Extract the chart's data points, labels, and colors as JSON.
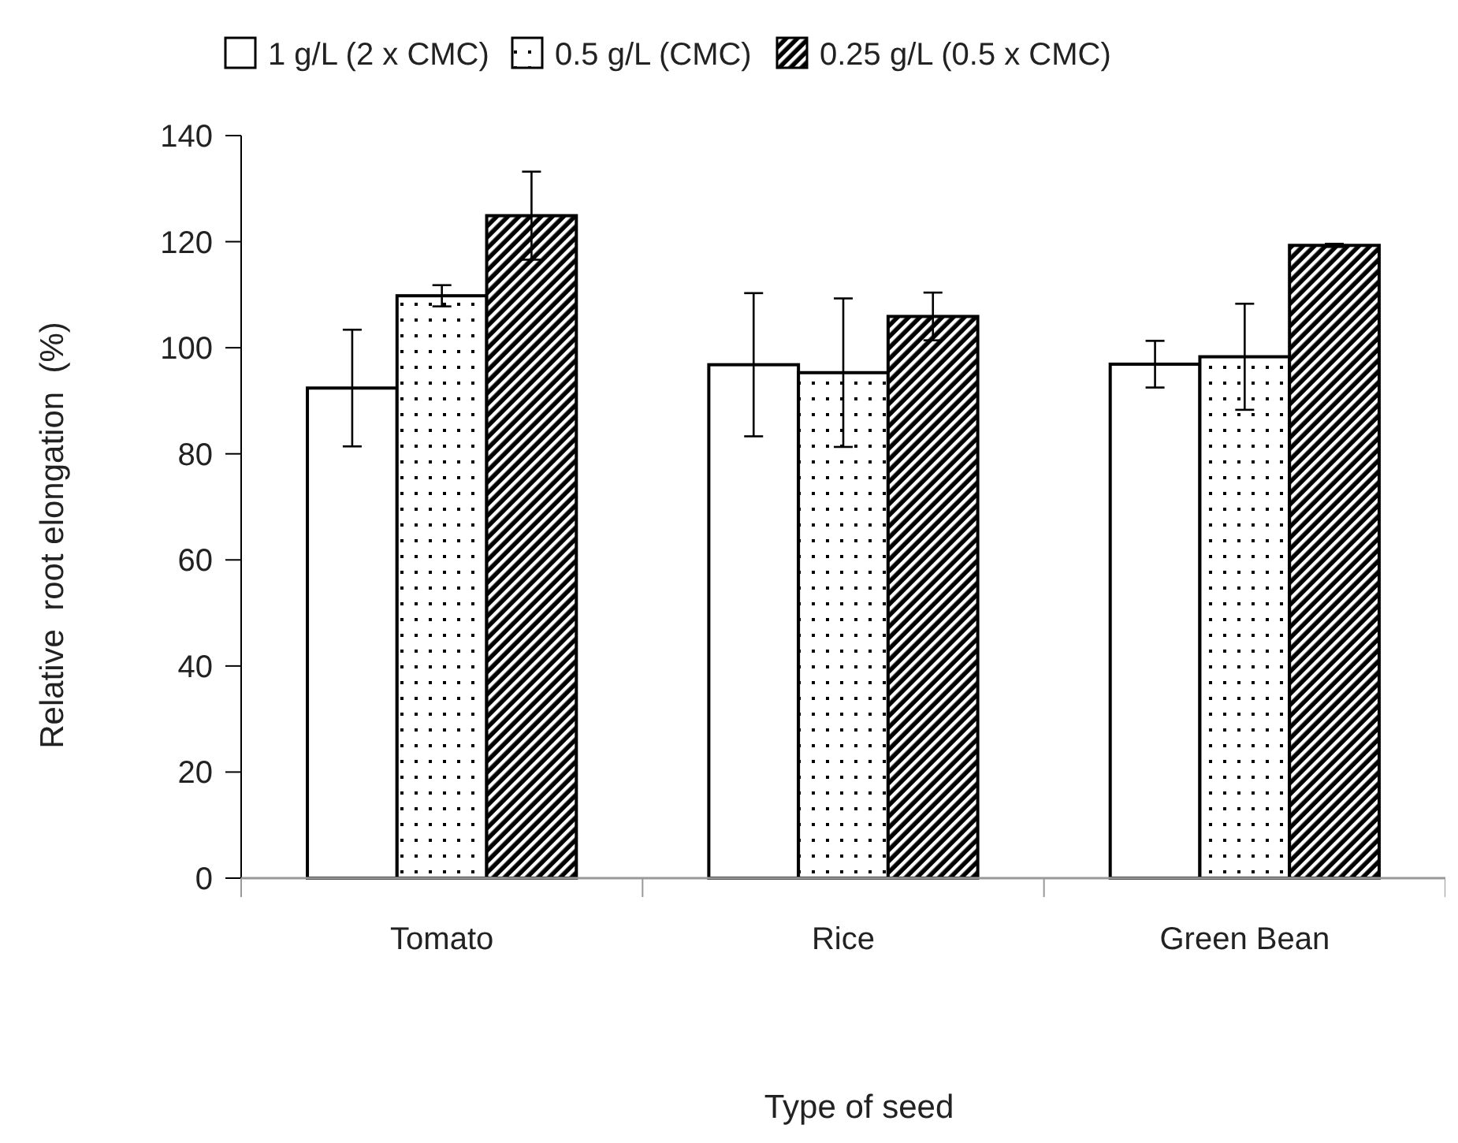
{
  "chart_data": {
    "type": "bar",
    "xlabel": "Type of seed",
    "ylabel": "Relative  root elongation  (%)",
    "categories": [
      "Tomato",
      "Rice",
      "Green Bean"
    ],
    "series": [
      {
        "name": "1 g/L (2 x CMC)",
        "color": "#ffffff",
        "values": [
          92.4,
          96.8,
          96.9
        ],
        "errors": [
          11,
          13.5,
          4.4
        ]
      },
      {
        "name": "0.5 g/L (CMC)",
        "color": "#000000",
        "values": [
          109.8,
          95.3,
          98.3
        ],
        "errors": [
          2,
          14,
          10
        ]
      },
      {
        "name": "0.25 g/L (0.5 x CMC)",
        "color": "#000000",
        "values": [
          124.9,
          105.9,
          119.3
        ],
        "errors": [
          8.3,
          4.5,
          0.3
        ]
      }
    ],
    "ylim": [
      0,
      140
    ],
    "yticks": [
      0,
      20,
      40,
      60,
      80,
      100,
      120,
      140
    ],
    "legend": "top",
    "grid": false
  }
}
